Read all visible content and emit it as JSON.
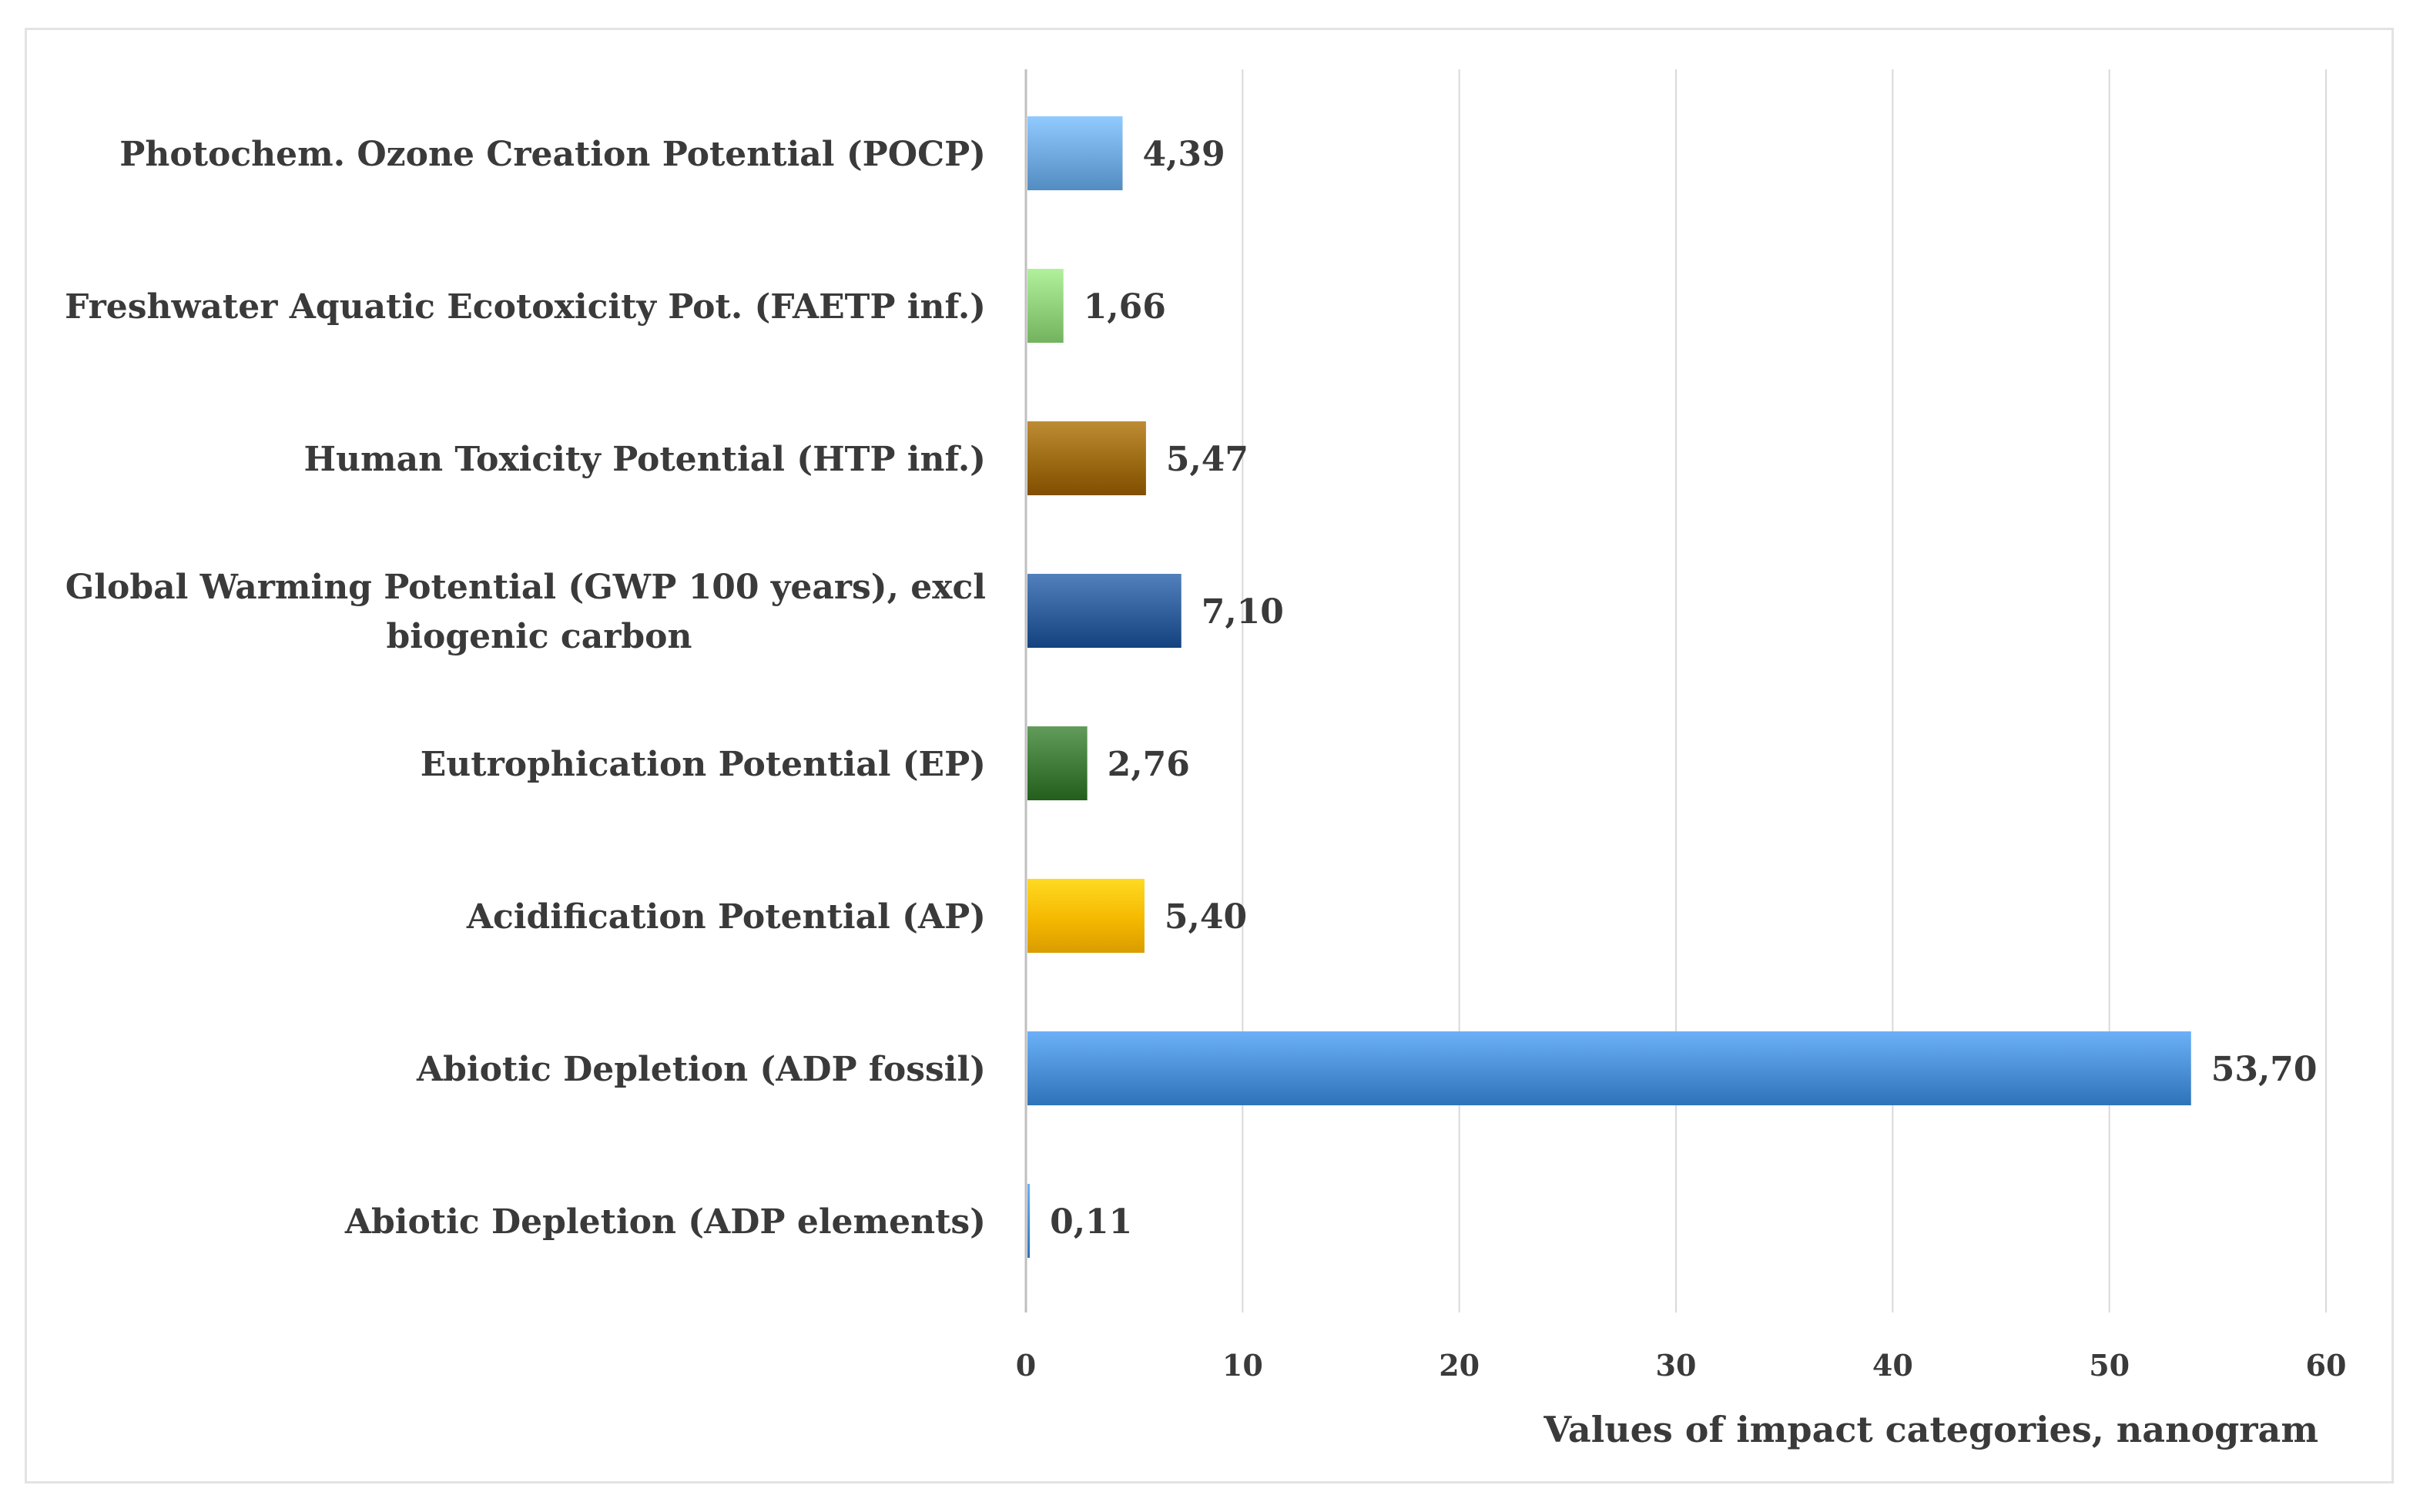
{
  "chart_data": {
    "type": "bar",
    "orientation": "horizontal",
    "title": "",
    "xlabel": "Values of impact categories, nanogram",
    "ylabel": "",
    "xlim": [
      0,
      60
    ],
    "x_ticks": [
      0,
      10,
      20,
      30,
      40,
      50,
      60
    ],
    "grid": true,
    "legend": "none",
    "categories": [
      {
        "label_lines": [
          "Photochem. Ozone Creation Potential (POCP)"
        ],
        "value": 4.39,
        "value_label": "4,39",
        "color": "#6fa8dc"
      },
      {
        "label_lines": [
          "Freshwater Aquatic Ecotoxicity Pot. (FAETP inf.)"
        ],
        "value": 1.66,
        "value_label": "1,66",
        "color": "#8fcf7a"
      },
      {
        "label_lines": [
          "Human Toxicity Potential (HTP inf.)"
        ],
        "value": 5.47,
        "value_label": "5,47",
        "color": "#9c6a12"
      },
      {
        "label_lines": [
          "Global Warming Potential (GWP 100 years), excl",
          "biogenic carbon"
        ],
        "value": 7.1,
        "value_label": "7,10",
        "color": "#2f5e9a"
      },
      {
        "label_lines": [
          "Eutrophication Potential (EP)"
        ],
        "value": 2.76,
        "value_label": "2,76",
        "color": "#3f7a38"
      },
      {
        "label_lines": [
          "Acidification Potential (AP)"
        ],
        "value": 5.4,
        "value_label": "5,40",
        "color": "#f5b800"
      },
      {
        "label_lines": [
          "Abiotic Depletion (ADP fossil)"
        ],
        "value": 53.7,
        "value_label": "53,70",
        "color": "#4a8fd6"
      },
      {
        "label_lines": [
          "Abiotic Depletion (ADP elements)"
        ],
        "value": 0.11,
        "value_label": "0,11",
        "color": "#4a8fd6"
      }
    ]
  }
}
